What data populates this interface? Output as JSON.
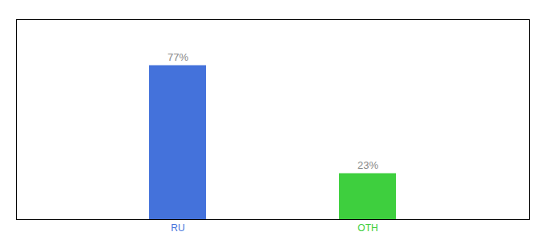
{
  "chart_data": {
    "type": "bar",
    "categories": [
      "RU",
      "OTH"
    ],
    "values": [
      77,
      23
    ],
    "value_labels": [
      "77%",
      "23%"
    ],
    "colors": [
      "#4472db",
      "#3ecf3e"
    ],
    "ylim": [
      0,
      100
    ],
    "data_labels": true,
    "tick_labels": "x"
  }
}
